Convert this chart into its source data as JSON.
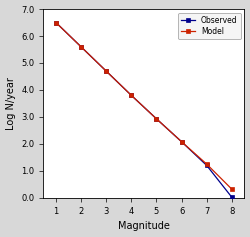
{
  "observed_x": [
    1,
    2,
    3,
    4,
    5,
    6,
    7,
    8
  ],
  "observed_y": [
    6.5,
    5.6,
    4.7,
    3.8,
    2.93,
    2.08,
    1.2,
    0.02
  ],
  "model_x": [
    1,
    2,
    3,
    4,
    5,
    6,
    7,
    8
  ],
  "model_y": [
    6.5,
    5.6,
    4.7,
    3.8,
    2.93,
    2.08,
    1.25,
    0.32
  ],
  "observed_color": "#00008B",
  "model_color": "#CC2200",
  "xlabel": "Magnitude",
  "ylabel": "Log N/year",
  "xlim": [
    0.5,
    8.5
  ],
  "ylim": [
    0.0,
    7.0
  ],
  "xticks": [
    1,
    2,
    3,
    4,
    5,
    6,
    7,
    8
  ],
  "yticks": [
    0.0,
    1.0,
    2.0,
    3.0,
    4.0,
    5.0,
    6.0,
    7.0
  ],
  "legend_observed": "Observed",
  "legend_model": "Model",
  "fig_bg_color": "#d8d8d8",
  "plot_bg_color": "#ffffff"
}
